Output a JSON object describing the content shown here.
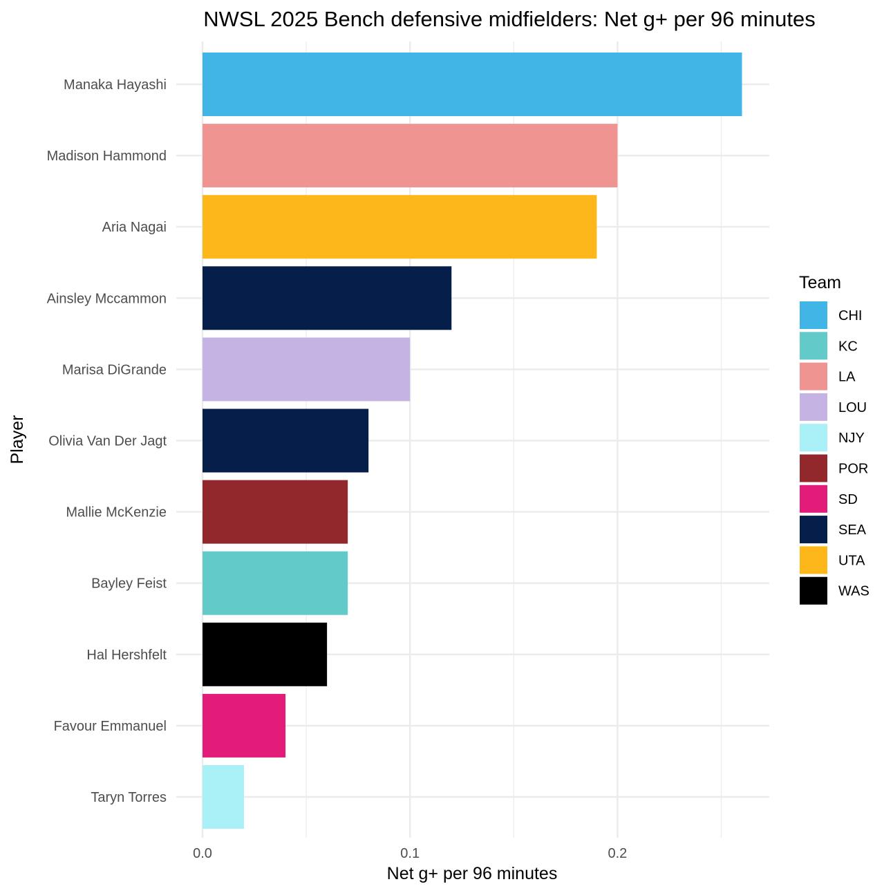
{
  "chart_data": {
    "type": "bar",
    "orientation": "horizontal",
    "title": "NWSL 2025 Bench defensive midfielders: Net g+ per 96 minutes",
    "xlabel": "Net g+ per 96 minutes",
    "ylabel": "Player",
    "xlim": [
      0,
      0.26
    ],
    "x_ticks": [
      0,
      0.1,
      0.2
    ],
    "x_tick_labels": [
      "0.0",
      "0.1",
      "0.2"
    ],
    "grid": true,
    "legend": {
      "title": "Team",
      "placement": "right",
      "entries": [
        {
          "label": "CHI",
          "color": "#41B6E6"
        },
        {
          "label": "KC",
          "color": "#62CBC9"
        },
        {
          "label": "LA",
          "color": "#F09491"
        },
        {
          "label": "LOU",
          "color": "#C5B4E3"
        },
        {
          "label": "NJY",
          "color": "#A9F1F6"
        },
        {
          "label": "POR",
          "color": "#93282C"
        },
        {
          "label": "SD",
          "color": "#E31C79"
        },
        {
          "label": "SEA",
          "color": "#061E4A"
        },
        {
          "label": "UTA",
          "color": "#FDB71A"
        },
        {
          "label": "WAS",
          "color": "#000000"
        }
      ]
    },
    "categories": [
      "Manaka Hayashi",
      "Madison Hammond",
      "Aria Nagai",
      "Ainsley Mccammon",
      "Marisa DiGrande",
      "Olivia Van Der Jagt",
      "Mallie McKenzie",
      "Bayley Feist",
      "Hal Hershfelt",
      "Favour Emmanuel",
      "Taryn Torres"
    ],
    "values": [
      0.26,
      0.2,
      0.19,
      0.12,
      0.1,
      0.08,
      0.07,
      0.07,
      0.06,
      0.04,
      0.02
    ],
    "teams": [
      "CHI",
      "LA",
      "UTA",
      "SEA",
      "LOU",
      "SEA",
      "POR",
      "KC",
      "WAS",
      "SD",
      "NJY"
    ]
  }
}
